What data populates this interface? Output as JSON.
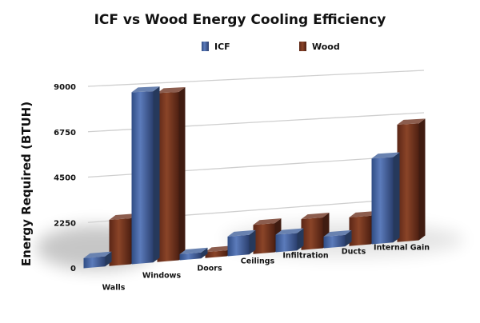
{
  "chart_data": {
    "type": "bar",
    "title": "ICF vs Wood Energy Cooling Efficiency",
    "xlabel": "",
    "ylabel": "Energy Required (BTUH)",
    "categories": [
      "Walls",
      "Windows",
      "Doors",
      "Ceilings",
      "Infiltration",
      "Ducts",
      "Internal Gain"
    ],
    "series": [
      {
        "name": "ICF",
        "color": "#3f5f9a",
        "values": [
          500,
          8600,
          300,
          1000,
          900,
          600,
          4500
        ]
      },
      {
        "name": "Wood",
        "color": "#6b2f1c",
        "values": [
          2300,
          8500,
          300,
          1500,
          1600,
          1500,
          6200
        ]
      }
    ],
    "yticks": [
      0,
      2250,
      4500,
      6750,
      9000
    ],
    "ylim": [
      0,
      9000
    ],
    "grid": true,
    "legend_position": "top-center",
    "style": "3d-perspective"
  }
}
